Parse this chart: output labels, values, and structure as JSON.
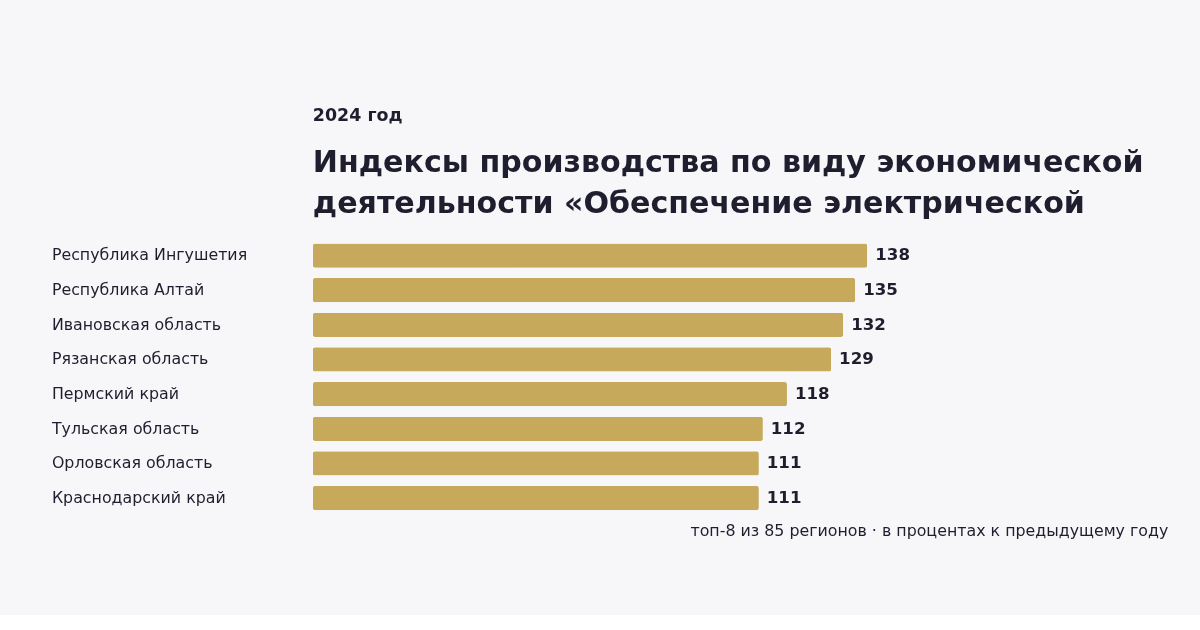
{
  "chart_data": {
    "type": "bar",
    "orientation": "horizontal",
    "subtitle": "2024 год",
    "title": "Индексы производства по виду экономической деятельности «Обеспечение электрической",
    "categories": [
      "Республика Ингушетия",
      "Республика Алтай",
      "Ивановская область",
      "Рязанская область",
      "Пермский край",
      "Тульская область",
      "Орловская область",
      "Краснодарский край"
    ],
    "values": [
      138,
      135,
      132,
      129,
      118,
      112,
      111,
      111
    ],
    "color": "#c6a95b",
    "data_labels": true,
    "annotations": [
      "топ-8 из 85 регионов · в процентах к предыдущему году"
    ]
  }
}
